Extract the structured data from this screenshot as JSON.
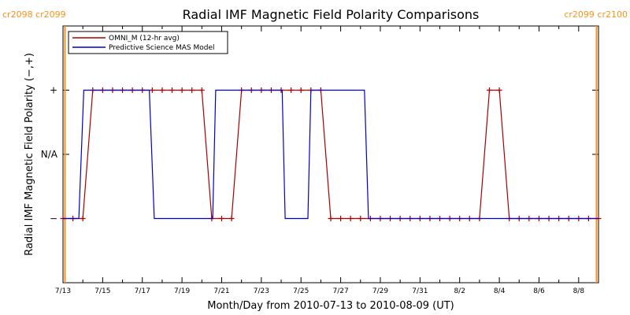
{
  "chart_data": {
    "type": "line",
    "title": "Radial IMF Magnetic Field Polarity Comparisons",
    "xlabel": "Month/Day from 2010-07-13 to 2010-08-09 (UT)",
    "ylabel": "Radial IMF Magnetic Field Polarity (−,+)",
    "x_tick_labels": [
      "7/13",
      "7/15",
      "7/17",
      "7/19",
      "7/21",
      "7/23",
      "7/25",
      "7/27",
      "7/29",
      "7/31",
      "8/2",
      "8/4",
      "8/6",
      "8/8"
    ],
    "y_tick_labels": [
      "+",
      "N/A",
      "−"
    ],
    "y_encoding": {
      "+": 1,
      "N/A": 0,
      "−": -1
    },
    "xlim_days": [
      0,
      27
    ],
    "ylim": [
      -2,
      2
    ],
    "carrington_markers": [
      {
        "day": 0.1,
        "label": "cr2098 cr2099",
        "color": "#f7931e"
      },
      {
        "day": 26.9,
        "label": "cr2099 cr2100",
        "color": "#f7931e"
      }
    ],
    "series": [
      {
        "name": "OMNI_M (12-hr avg)",
        "color": "#aa0000",
        "marker": "+",
        "x": [
          0,
          0.5,
          1,
          1.5,
          2,
          2.5,
          3,
          3.5,
          4,
          4.5,
          5,
          5.5,
          6,
          6.5,
          7,
          7.5,
          8,
          8.5,
          9,
          9.5,
          10,
          10.5,
          11,
          11.5,
          12,
          12.5,
          13,
          13.5,
          14,
          14.5,
          15,
          15.5,
          16,
          16.5,
          17,
          17.5,
          18,
          18.5,
          19,
          19.5,
          20,
          20.5,
          21,
          21.5,
          22,
          22.5,
          23,
          23.5,
          24,
          24.5,
          25,
          25.5,
          26,
          26.5,
          27
        ],
        "values": [
          -1,
          -1,
          -1,
          1,
          1,
          1,
          1,
          1,
          1,
          1,
          1,
          1,
          1,
          1,
          1,
          -1,
          -1,
          -1,
          1,
          1,
          1,
          1,
          1,
          1,
          1,
          1,
          1,
          -1,
          -1,
          -1,
          -1,
          -1,
          -1,
          -1,
          -1,
          -1,
          -1,
          -1,
          -1,
          -1,
          -1,
          -1,
          -1,
          1,
          1,
          -1,
          -1,
          -1,
          -1,
          -1,
          -1,
          -1,
          -1,
          -1,
          -1
        ]
      },
      {
        "name": "Predictive Science MAS Model",
        "color": "#0000cc",
        "x": [
          0,
          0.8,
          1.05,
          1.2,
          4.35,
          4.6,
          7.55,
          7.7,
          11.05,
          11.2,
          12.35,
          12.5,
          12.55,
          12.7,
          15.2,
          15.4,
          27
        ],
        "values": [
          -1,
          -1,
          1,
          1,
          1,
          -1,
          -1,
          1,
          1,
          -1,
          -1,
          1,
          1,
          1,
          1,
          -1,
          -1
        ]
      }
    ]
  }
}
